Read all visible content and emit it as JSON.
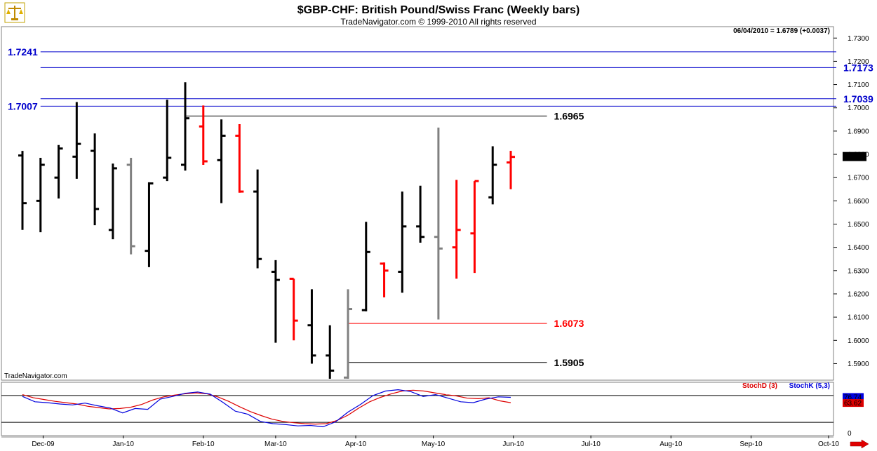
{
  "header": {
    "title": "$GBP-CHF:  British Pound/Swiss Franc  (Weekly bars)",
    "subtitle": "TradeNavigator.com © 1999-2010 All rights reserved",
    "last_info": "06/04/2010 = 1.6789 (+0.0037)",
    "watermark": "TradeNavigator.com",
    "logo_icon": "scales-logo-icon",
    "scroll_icon": "right-arrow-icon"
  },
  "colors": {
    "up": "#000000",
    "down": "#ff0000",
    "neutral": "#808080",
    "green": "#00cc00",
    "blue_level": "#0000cc",
    "stoch_d": "#dd0000",
    "stoch_k": "#0000dd",
    "panel_bg": "#ffffff"
  },
  "chart_data": {
    "type": "ohlc",
    "price_axis": {
      "ylim": [
        1.5835,
        1.734
      ],
      "ticks": [
        "1.7300",
        "1.7200",
        "1.7100",
        "1.7000",
        "1.6900",
        "1.6800",
        "1.6700",
        "1.6600",
        "1.6500",
        "1.6400",
        "1.6300",
        "1.6200",
        "1.6100",
        "1.6000",
        "1.5900"
      ],
      "last_price_label": "1.6789"
    },
    "time_axis": {
      "start": "2009-11-23",
      "end": "2010-10-04",
      "labels": [
        {
          "date": "2009-12-01",
          "text": "Dec-09"
        },
        {
          "date": "2010-01-01",
          "text": "Jan-10"
        },
        {
          "date": "2010-02-01",
          "text": "Feb-10"
        },
        {
          "date": "2010-03-01",
          "text": "Mar-10"
        },
        {
          "date": "2010-04-01",
          "text": "Apr-10"
        },
        {
          "date": "2010-05-01",
          "text": "May-10"
        },
        {
          "date": "2010-06-01",
          "text": "Jun-10"
        },
        {
          "date": "2010-07-01",
          "text": "Jul-10"
        },
        {
          "date": "2010-08-01",
          "text": "Aug-10"
        },
        {
          "date": "2010-09-01",
          "text": "Sep-10"
        },
        {
          "date": "2010-10-01",
          "text": "Oct-10"
        }
      ]
    },
    "bars": [
      {
        "date": "2009-11-23",
        "o": 1.6795,
        "h": 1.6815,
        "l": 1.6475,
        "c": 1.659,
        "color": "up"
      },
      {
        "date": "2009-11-30",
        "o": 1.66,
        "h": 1.6785,
        "l": 1.6465,
        "c": 1.6755,
        "color": "up"
      },
      {
        "date": "2009-12-07",
        "o": 1.67,
        "h": 1.684,
        "l": 1.661,
        "c": 1.6825,
        "color": "up"
      },
      {
        "date": "2009-12-14",
        "o": 1.679,
        "h": 1.7025,
        "l": 1.6695,
        "c": 1.6845,
        "color": "up"
      },
      {
        "date": "2009-12-21",
        "o": 1.6815,
        "h": 1.689,
        "l": 1.6495,
        "c": 1.6565,
        "color": "up"
      },
      {
        "date": "2009-12-28",
        "o": 1.6475,
        "h": 1.676,
        "l": 1.6435,
        "c": 1.674,
        "color": "up"
      },
      {
        "date": "2010-01-04",
        "o": 1.6755,
        "h": 1.6785,
        "l": 1.637,
        "c": 1.6405,
        "color": "neutral"
      },
      {
        "date": "2010-01-11",
        "o": 1.6385,
        "h": 1.668,
        "l": 1.6315,
        "c": 1.6675,
        "color": "up"
      },
      {
        "date": "2010-01-18",
        "o": 1.67,
        "h": 1.7035,
        "l": 1.6685,
        "c": 1.6785,
        "color": "up"
      },
      {
        "date": "2010-01-25",
        "o": 1.6755,
        "h": 1.711,
        "l": 1.673,
        "c": 1.6955,
        "color": "up"
      },
      {
        "date": "2010-02-01",
        "o": 1.692,
        "h": 1.701,
        "l": 1.6755,
        "c": 1.677,
        "color": "down"
      },
      {
        "date": "2010-02-08",
        "o": 1.6775,
        "h": 1.695,
        "l": 1.659,
        "c": 1.688,
        "color": "up"
      },
      {
        "date": "2010-02-15",
        "o": 1.688,
        "h": 1.693,
        "l": 1.6635,
        "c": 1.664,
        "color": "down"
      },
      {
        "date": "2010-02-22",
        "o": 1.664,
        "h": 1.6735,
        "l": 1.631,
        "c": 1.635,
        "color": "up"
      },
      {
        "date": "2010-03-01",
        "o": 1.6295,
        "h": 1.6345,
        "l": 1.599,
        "c": 1.626,
        "color": "up"
      },
      {
        "date": "2010-03-08",
        "o": 1.6265,
        "h": 1.6265,
        "l": 1.6,
        "c": 1.6085,
        "color": "down"
      },
      {
        "date": "2010-03-15",
        "o": 1.6065,
        "h": 1.622,
        "l": 1.59,
        "c": 1.5935,
        "color": "up"
      },
      {
        "date": "2010-03-22",
        "o": 1.5935,
        "h": 1.6065,
        "l": 1.5835,
        "c": 1.587,
        "color": "up"
      },
      {
        "date": "2010-03-29",
        "o": 1.584,
        "h": 1.622,
        "l": 1.5835,
        "c": 1.6135,
        "color": "neutral"
      },
      {
        "date": "2010-04-05",
        "o": 1.613,
        "h": 1.651,
        "l": 1.6125,
        "c": 1.638,
        "color": "up"
      },
      {
        "date": "2010-04-12",
        "o": 1.633,
        "h": 1.6335,
        "l": 1.6185,
        "c": 1.63,
        "color": "down"
      },
      {
        "date": "2010-04-19",
        "o": 1.6295,
        "h": 1.664,
        "l": 1.6205,
        "c": 1.649,
        "color": "up"
      },
      {
        "date": "2010-04-26",
        "o": 1.649,
        "h": 1.6665,
        "l": 1.642,
        "c": 1.6445,
        "color": "up"
      },
      {
        "date": "2010-05-03",
        "o": 1.6445,
        "h": 1.6915,
        "l": 1.609,
        "c": 1.6395,
        "color": "neutral"
      },
      {
        "date": "2010-05-10",
        "o": 1.64,
        "h": 1.669,
        "l": 1.6265,
        "c": 1.6475,
        "color": "down"
      },
      {
        "date": "2010-05-17",
        "o": 1.646,
        "h": 1.6685,
        "l": 1.629,
        "c": 1.6685,
        "color": "down"
      },
      {
        "date": "2010-05-24",
        "o": 1.6615,
        "h": 1.6835,
        "l": 1.6585,
        "c": 1.6755,
        "color": "up"
      },
      {
        "date": "2010-05-31",
        "o": 1.6765,
        "h": 1.6815,
        "l": 1.665,
        "c": 1.6789,
        "color": "down"
      }
    ],
    "levels": [
      {
        "value": 1.7241,
        "label": "1.7241",
        "color": "blue_level",
        "from": "2009-11-30",
        "to": "2010-10-04",
        "label_pos": "left"
      },
      {
        "value": 1.7173,
        "label": "1.7173",
        "color": "blue_level",
        "from": "2009-11-30",
        "to": "2010-10-04",
        "label_pos": "right"
      },
      {
        "value": 1.7039,
        "label": "1.7039",
        "color": "blue_level",
        "from": "2009-11-30",
        "to": "2010-10-04",
        "label_pos": "right"
      },
      {
        "value": 1.7007,
        "label": "1.7007",
        "color": "blue_level",
        "from": "2009-11-30",
        "to": "2010-10-04",
        "label_pos": "left"
      },
      {
        "value": 1.6965,
        "label": "1.6965",
        "color": "up",
        "from": "2010-01-25",
        "to": "2010-06-14",
        "label_pos": "right"
      },
      {
        "value": 1.6073,
        "label": "1.6073",
        "color": "down",
        "from": "2010-03-29",
        "to": "2010-06-14",
        "label_pos": "right"
      },
      {
        "value": 1.5905,
        "label": "1.5905",
        "color": "up",
        "from": "2010-03-29",
        "to": "2010-06-14",
        "label_pos": "right"
      }
    ],
    "stochastic": {
      "ylim": [
        -5,
        105
      ],
      "levels": [
        80,
        20
      ],
      "tick_label": "0",
      "d_name": "StochD (3)",
      "k_name": "StochK (5,3)",
      "d_last": "63.62",
      "k_last": "76.74",
      "d": [
        82,
        75,
        71,
        67,
        64,
        61,
        56,
        53,
        50,
        51,
        54,
        60,
        70,
        77,
        81,
        84,
        86,
        84,
        77,
        67,
        55,
        44,
        35,
        27,
        22,
        19,
        17,
        16,
        17,
        24,
        36,
        52,
        66,
        76,
        84,
        90,
        92,
        90,
        86,
        82,
        79,
        74,
        73,
        75,
        68,
        64
      ],
      "k": [
        78,
        66,
        64,
        61,
        59,
        63,
        57,
        52,
        41,
        51,
        49,
        72,
        78,
        85,
        88,
        83,
        65,
        45,
        38,
        22,
        17,
        15,
        12,
        13,
        10,
        21,
        43,
        60,
        80,
        90,
        93,
        89,
        78,
        82,
        74,
        66,
        64,
        72,
        77,
        76
      ]
    }
  }
}
